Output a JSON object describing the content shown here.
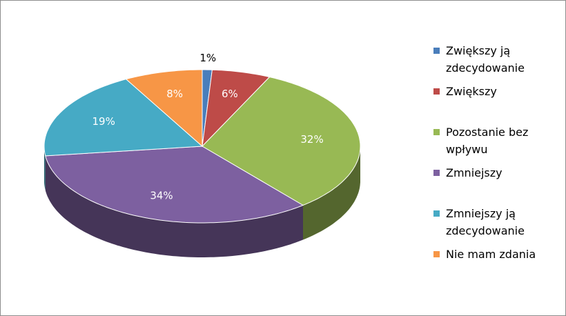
{
  "chart_data": {
    "type": "pie",
    "categories": [
      "Zwiększy ją zdecydowanie",
      "Zwiększy",
      "Pozostanie bez wpływu",
      "Zmniejszy",
      "Zmniejszy ją zdecydowanie",
      "Nie mam zdania"
    ],
    "values": [
      1,
      6,
      32,
      34,
      19,
      8
    ],
    "value_labels": [
      "1%",
      "6%",
      "32%",
      "34%",
      "19%",
      "8%"
    ],
    "colors": [
      "#4a7ebb",
      "#be4b48",
      "#98b954",
      "#7d60a0",
      "#46aac5",
      "#f79646"
    ],
    "legend": "right"
  }
}
